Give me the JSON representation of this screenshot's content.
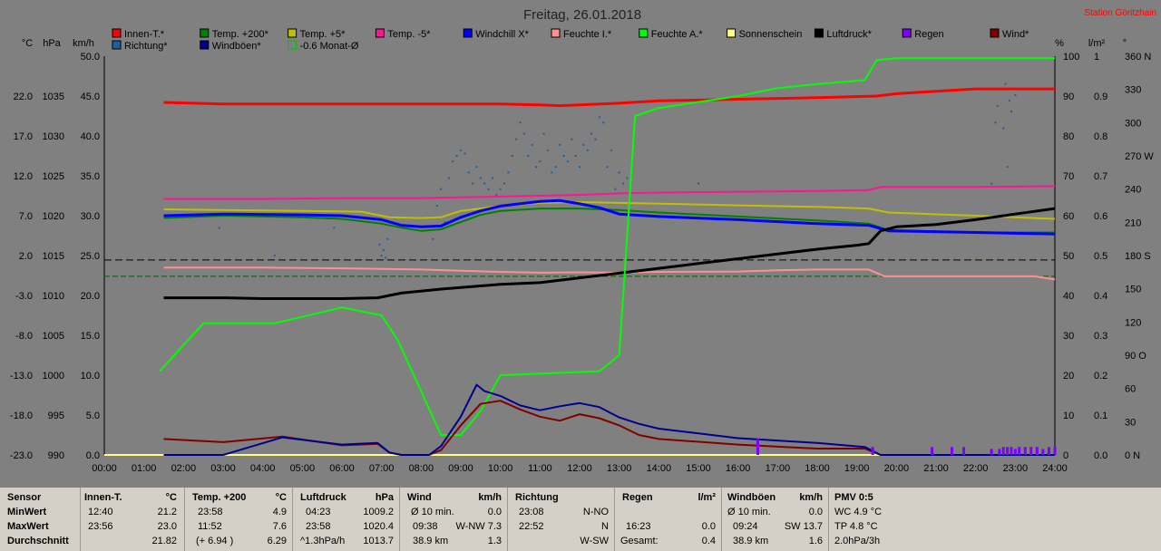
{
  "title": "Freitag, 26.01.2018",
  "station": "Station Göritzhain",
  "legend": [
    {
      "label": "Innen-T.*",
      "color": "#ff0000",
      "row": 0,
      "col": 0
    },
    {
      "label": "Temp. +200*",
      "color": "#008000",
      "row": 0,
      "col": 1
    },
    {
      "label": "Temp. +5*",
      "color": "#c0c000",
      "row": 0,
      "col": 2
    },
    {
      "label": "Temp. -5*",
      "color": "#ff1493",
      "row": 0,
      "col": 3
    },
    {
      "label": "Windchill X*",
      "color": "#0000ff",
      "row": 0,
      "col": 4
    },
    {
      "label": "Feuchte I.*",
      "color": "#ff9090",
      "row": 0,
      "col": 5
    },
    {
      "label": "Feuchte A.*",
      "color": "#00ff00",
      "row": 0,
      "col": 6
    },
    {
      "label": "Sonnenschein",
      "color": "#ffff80",
      "row": 0,
      "col": 7
    },
    {
      "label": "Luftdruck*",
      "color": "#000000",
      "row": 0,
      "col": 8
    },
    {
      "label": "Regen",
      "color": "#8000ff",
      "row": 0,
      "col": 9
    },
    {
      "label": "Wind*",
      "color": "#800000",
      "row": 0,
      "col": 10
    },
    {
      "label": "Richtung*",
      "color": "#1f5fa0",
      "row": 1,
      "col": 0
    },
    {
      "label": "Windböen*",
      "color": "#000090",
      "row": 1,
      "col": 1
    },
    {
      "label": "-0.6 Monat-Ø",
      "color": "#00c000",
      "row": 1,
      "col": 2,
      "hollow": true
    }
  ],
  "axis_units": {
    "celsius": "°C",
    "hpa": "hPa",
    "kmh": "km/h",
    "percent": "%",
    "lm2": "l/m²",
    "deg": "°"
  },
  "chart_data": {
    "type": "line",
    "x_ticks": [
      "00:00",
      "01:00",
      "02:00",
      "03:00",
      "04:00",
      "05:00",
      "06:00",
      "07:00",
      "08:00",
      "09:00",
      "10:00",
      "11:00",
      "12:00",
      "13:00",
      "14:00",
      "15:00",
      "16:00",
      "17:00",
      "18:00",
      "19:00",
      "20:00",
      "21:00",
      "22:00",
      "23:00",
      "24:00"
    ],
    "axes": {
      "celsius": {
        "ticks": [
          "22.0",
          "17.0",
          "12.0",
          "7.0",
          "2.0",
          "-3.0",
          "-8.0",
          "-13.0",
          "-18.0",
          "-23.0"
        ],
        "range": [
          -23,
          27
        ]
      },
      "hpa": {
        "ticks": [
          "1035",
          "1030",
          "1025",
          "1020",
          "1015",
          "1010",
          "1005",
          "1000",
          "995",
          "990"
        ],
        "range": [
          990,
          1040
        ]
      },
      "kmh": {
        "ticks": [
          "50.0",
          "45.0",
          "40.0",
          "35.0",
          "30.0",
          "25.0",
          "20.0",
          "15.0",
          "10.0",
          "5.0",
          "0.0"
        ],
        "range": [
          0,
          50
        ]
      },
      "percent": {
        "ticks": [
          "100",
          "90",
          "80",
          "70",
          "60",
          "50",
          "40",
          "30",
          "20",
          "10",
          "0"
        ],
        "range": [
          0,
          100
        ]
      },
      "lm2": {
        "ticks": [
          "1",
          "0.9",
          "0.8",
          "0.7",
          "0.6",
          "0.5",
          "0.4",
          "0.3",
          "0.2",
          "0.1",
          "0.0"
        ],
        "range": [
          0,
          1
        ]
      },
      "deg": {
        "ticks": [
          "360 N",
          "330",
          "300",
          "270 W",
          "240",
          "210",
          "180 S",
          "150",
          "120",
          "90 O",
          "60",
          "30",
          "0 N"
        ],
        "range": [
          0,
          360
        ]
      }
    },
    "series": [
      {
        "name": "Innen-T.*",
        "axis": "celsius",
        "color": "#ff0000",
        "width": 3,
        "x": [
          1.5,
          3,
          5,
          7,
          9,
          10,
          11,
          11.5,
          12,
          13,
          14,
          16,
          18,
          19.5,
          20,
          21,
          22,
          24
        ],
        "y": [
          21.2,
          21.0,
          21.0,
          21.0,
          21.0,
          21.0,
          20.9,
          20.8,
          20.9,
          21.1,
          21.4,
          21.6,
          21.8,
          22.0,
          22.3,
          22.6,
          22.9,
          22.9
        ]
      },
      {
        "name": "Temp. -5*",
        "axis": "celsius",
        "color": "#ff1493",
        "width": 2,
        "x": [
          1.5,
          4,
          6,
          8,
          9,
          10,
          11,
          12,
          13,
          14,
          16,
          18,
          19.3,
          19.6,
          22,
          24
        ],
        "y": [
          9.1,
          9.1,
          9.2,
          9.2,
          9.3,
          9.4,
          9.5,
          9.6,
          9.8,
          9.9,
          10.0,
          10.1,
          10.2,
          10.6,
          10.6,
          10.7
        ]
      },
      {
        "name": "Temp. +5*",
        "axis": "celsius",
        "color": "#c0c000",
        "width": 2,
        "x": [
          1.5,
          3,
          5,
          6.5,
          7.2,
          8,
          8.5,
          9,
          10,
          11,
          12,
          13,
          14,
          16,
          18,
          19.3,
          19.8,
          22,
          24
        ],
        "y": [
          7.8,
          7.7,
          7.6,
          7.5,
          6.8,
          6.7,
          6.8,
          7.6,
          8.2,
          8.6,
          8.7,
          8.6,
          8.5,
          8.3,
          8.1,
          7.9,
          7.4,
          7.0,
          6.6
        ]
      },
      {
        "name": "Temp. +200*",
        "axis": "celsius",
        "color": "#008000",
        "width": 2,
        "x": [
          1.5,
          3,
          5,
          6,
          7,
          7.5,
          8,
          8.5,
          9,
          9.5,
          10,
          11,
          12,
          13,
          14,
          16,
          18,
          19.3,
          19.8,
          22,
          24
        ],
        "y": [
          6.7,
          7.0,
          6.8,
          6.6,
          6.0,
          5.5,
          5.1,
          5.3,
          6.2,
          7.1,
          7.6,
          7.9,
          7.9,
          7.7,
          7.4,
          6.9,
          6.4,
          6.0,
          5.2,
          4.9,
          4.9
        ]
      },
      {
        "name": "Windchill X*",
        "axis": "celsius",
        "color": "#0000ff",
        "width": 3,
        "x": [
          1.5,
          3,
          5,
          6,
          7,
          7.5,
          8,
          8.5,
          9,
          9.5,
          10,
          11,
          11.5,
          12,
          12.5,
          13,
          14,
          16,
          18,
          19.3,
          19.8,
          22,
          24
        ],
        "y": [
          7.0,
          7.2,
          7.1,
          7.0,
          6.5,
          5.8,
          5.6,
          5.7,
          6.8,
          7.6,
          8.2,
          8.8,
          8.9,
          8.5,
          8.0,
          7.2,
          6.9,
          6.5,
          6.0,
          5.8,
          5.1,
          4.9,
          4.7
        ]
      },
      {
        "name": "Feuchte I.*",
        "axis": "percent",
        "color": "#ff9090",
        "width": 2,
        "x": [
          1.5,
          4,
          6,
          8,
          9,
          10,
          11,
          12,
          13,
          14,
          16,
          17,
          18,
          19.3,
          19.7,
          22,
          23.5,
          24
        ],
        "y": [
          47.0,
          47.0,
          46.8,
          46.5,
          46.2,
          45.9,
          45.7,
          45.8,
          45.7,
          45.9,
          46.0,
          46.3,
          46.5,
          46.5,
          44.8,
          44.8,
          44.8,
          44.0
        ]
      },
      {
        "name": "Luftdruck*",
        "axis": "hpa",
        "color": "#000000",
        "width": 3,
        "x": [
          1.5,
          3,
          4,
          6,
          6.9,
          7.5,
          8.5,
          9,
          10,
          11,
          12,
          13,
          14,
          15,
          16,
          17,
          18,
          19,
          19.3,
          19.6,
          20,
          21,
          22,
          23,
          24
        ],
        "y": [
          1009.7,
          1009.7,
          1009.6,
          1009.6,
          1009.7,
          1010.3,
          1010.8,
          1011.0,
          1011.4,
          1011.6,
          1012.2,
          1012.8,
          1013.4,
          1014.0,
          1014.6,
          1015.2,
          1015.8,
          1016.3,
          1016.5,
          1018.1,
          1018.6,
          1018.9,
          1019.5,
          1020.2,
          1020.9
        ]
      },
      {
        "name": "Feuchte A.*",
        "axis": "percent",
        "color": "#00ff00",
        "width": 2,
        "x": [
          1.4,
          2.5,
          4.3,
          6,
          7,
          7.4,
          8,
          8.5,
          9,
          9.5,
          10,
          12.5,
          13,
          13,
          13.4,
          14,
          16,
          17,
          18,
          19.2,
          19.5,
          20,
          21,
          22,
          23,
          24
        ],
        "y": [
          21,
          33,
          33,
          37,
          35,
          29,
          16,
          5,
          5,
          11,
          20,
          21,
          25,
          25,
          85,
          87,
          90,
          92,
          93,
          94,
          99,
          99.5,
          99.5,
          99.5,
          99.5,
          99.5
        ]
      },
      {
        "name": "Wind*",
        "axis": "kmh",
        "color": "#800000",
        "width": 2,
        "x": [
          1.5,
          3,
          4.5,
          6,
          6.9,
          7.2,
          7.5,
          8.2,
          8.5,
          9,
          9.5,
          10,
          10.5,
          11,
          11.5,
          12,
          12.5,
          13,
          13.5,
          14,
          16,
          18,
          19.2,
          19.6,
          24
        ],
        "y": [
          2.0,
          1.6,
          2.3,
          1.2,
          1.4,
          0.3,
          0.0,
          0.0,
          0.6,
          3.7,
          6.4,
          6.8,
          5.7,
          4.8,
          4.3,
          5.1,
          4.6,
          3.7,
          2.5,
          2.0,
          1.3,
          0.8,
          0.8,
          0.0,
          0.0
        ]
      },
      {
        "name": "Windböen*",
        "axis": "kmh",
        "color": "#000090",
        "width": 2,
        "x": [
          1.5,
          3,
          4.5,
          6,
          6.9,
          7.2,
          7.5,
          8.2,
          8.5,
          9,
          9.4,
          9.6,
          10,
          10.5,
          11,
          11.5,
          12,
          12.5,
          13,
          13.5,
          14,
          16,
          18,
          19.2,
          19.6,
          24
        ],
        "y": [
          0.0,
          0.0,
          2.2,
          1.3,
          1.5,
          0.3,
          0.0,
          0.0,
          1.1,
          4.8,
          8.8,
          8.0,
          7.4,
          6.2,
          5.6,
          6.1,
          6.5,
          6.0,
          4.7,
          3.9,
          3.3,
          2.1,
          1.5,
          1.0,
          0.0,
          0.0
        ]
      }
    ],
    "reference_lines": [
      {
        "name": "Ø dashed black",
        "axis": "celsius",
        "y": 1.45,
        "color": "#000000"
      },
      {
        "name": "-0.6 Monat-Ø",
        "axis": "celsius",
        "y": -0.6,
        "color": "#006000"
      }
    ],
    "sunshine": {
      "name": "Sonnenschein",
      "axis": "kmh",
      "color": "#ffff80",
      "y": 0.0
    },
    "rain_marks": {
      "name": "Regen",
      "axis": "lm2",
      "color": "#8000ff",
      "x": [
        16.5,
        19.4,
        20.9,
        21.4,
        21.7,
        22.4,
        22.6,
        22.7,
        22.8,
        22.9,
        23.0,
        23.1,
        23.25,
        23.4,
        23.55,
        23.7,
        23.85,
        24.0
      ],
      "h": [
        0.04,
        0.02,
        0.02,
        0.02,
        0.02,
        0.015,
        0.015,
        0.02,
        0.02,
        0.02,
        0.015,
        0.02,
        0.02,
        0.02,
        0.02,
        0.015,
        0.02,
        0.02
      ]
    },
    "direction_points": {
      "name": "Richtung*",
      "axis": "deg",
      "color": "#1f5fa0",
      "x": [
        2.9,
        4.3,
        5.8,
        6.95,
        7.0,
        7.05,
        7.1,
        7.15,
        8.3,
        8.4,
        8.5,
        8.6,
        8.7,
        8.8,
        8.9,
        9.0,
        9.1,
        9.2,
        9.3,
        9.4,
        9.5,
        9.6,
        9.7,
        9.8,
        9.9,
        10.0,
        10.1,
        10.2,
        10.3,
        10.4,
        10.5,
        10.6,
        10.7,
        10.8,
        10.9,
        11.0,
        11.1,
        11.2,
        11.3,
        11.4,
        11.5,
        11.6,
        11.7,
        11.8,
        11.9,
        12.0,
        12.1,
        12.2,
        12.3,
        12.4,
        12.5,
        12.6,
        12.7,
        12.8,
        12.9,
        13.0,
        13.1,
        13.2,
        15.0,
        22.4,
        22.5,
        22.55,
        22.6,
        22.7,
        22.75,
        22.8,
        22.85,
        22.9,
        23.0
      ],
      "y": [
        205,
        180,
        205,
        190,
        180,
        185,
        178,
        195,
        195,
        225,
        240,
        210,
        250,
        265,
        270,
        275,
        272,
        255,
        245,
        260,
        250,
        245,
        240,
        250,
        235,
        240,
        245,
        255,
        270,
        285,
        300,
        290,
        270,
        280,
        260,
        265,
        290,
        275,
        255,
        260,
        280,
        270,
        265,
        285,
        270,
        260,
        280,
        275,
        290,
        285,
        305,
        300,
        260,
        275,
        240,
        255,
        245,
        250,
        245,
        245,
        300,
        315,
        330,
        295,
        335,
        260,
        320,
        310,
        325
      ]
    }
  },
  "table": {
    "headers": [
      "Sensor",
      "Innen-T.",
      "Temp. +200",
      "Luftdruck",
      "Wind",
      "Richtung",
      "Regen",
      "Windböen",
      "PMV 0:5"
    ],
    "units": [
      "",
      "°C",
      "°C",
      "hPa",
      "km/h",
      "",
      "l/m²",
      "km/h",
      ""
    ],
    "row_labels": [
      "MinWert",
      "MaxWert",
      "Durchschnitt"
    ],
    "innen": [
      [
        "12:40",
        "21.2"
      ],
      [
        "23:56",
        "23.0"
      ],
      [
        "",
        "21.82"
      ]
    ],
    "temp200": [
      [
        "23:58",
        "4.9"
      ],
      [
        "11:52",
        "7.6"
      ],
      [
        "(+ 6.94 )",
        "6.29"
      ]
    ],
    "druck": [
      [
        "04:23",
        "1009.2"
      ],
      [
        "23:58",
        "1020.4"
      ],
      [
        "^1.3hPa/h",
        "1013.7"
      ]
    ],
    "wind": [
      [
        "Ø 10 min.",
        "0.0"
      ],
      [
        "09:38",
        "W-NW 7.3"
      ],
      [
        "38.9 km",
        "1.3"
      ]
    ],
    "richtung": [
      [
        "23:08",
        "N-NO"
      ],
      [
        "22:52",
        "N"
      ],
      [
        "",
        "W-SW"
      ]
    ],
    "regen": [
      [
        "",
        ""
      ],
      [
        "16:23",
        "0.0"
      ],
      [
        "Gesamt:",
        "0.4"
      ]
    ],
    "boeen": [
      [
        "Ø 10 min.",
        "0.0"
      ],
      [
        "09:24",
        "SW 13.7"
      ],
      [
        "38.9 km",
        "1.6"
      ]
    ],
    "pmv": [
      "WC 4.9 °C",
      "TP 4.8 °C",
      "2.0hPa/3h"
    ]
  }
}
